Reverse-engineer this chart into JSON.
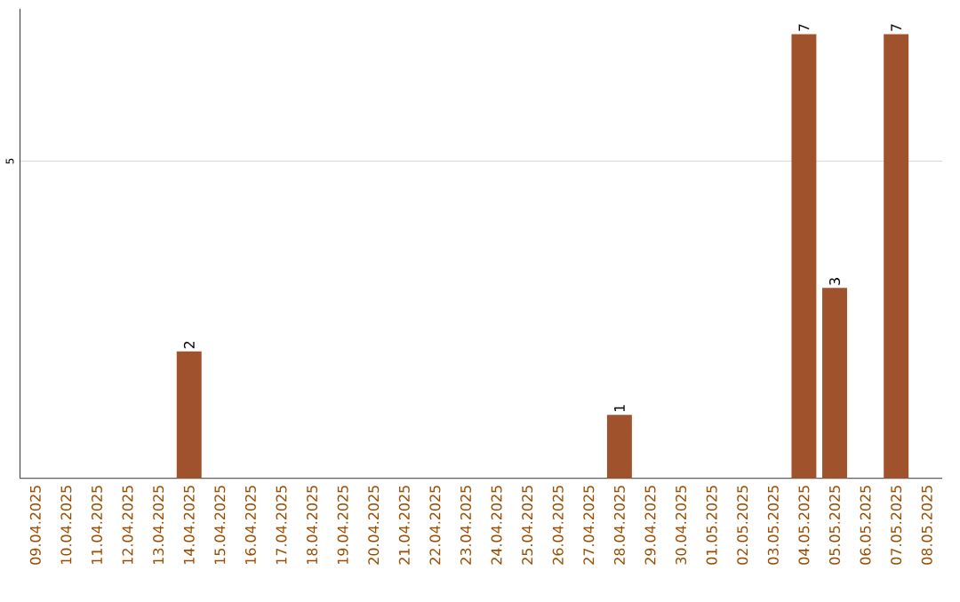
{
  "chart_data": {
    "type": "bar",
    "categories": [
      "09.04.2025",
      "10.04.2025",
      "11.04.2025",
      "12.04.2025",
      "13.04.2025",
      "14.04.2025",
      "15.04.2025",
      "16.04.2025",
      "17.04.2025",
      "18.04.2025",
      "19.04.2025",
      "20.04.2025",
      "21.04.2025",
      "22.04.2025",
      "23.04.2025",
      "24.04.2025",
      "25.04.2025",
      "26.04.2025",
      "27.04.2025",
      "28.04.2025",
      "29.04.2025",
      "30.04.2025",
      "01.05.2025",
      "02.05.2025",
      "03.05.2025",
      "04.05.2025",
      "05.05.2025",
      "06.05.2025",
      "07.05.2025",
      "08.05.2025"
    ],
    "values": [
      0,
      0,
      0,
      0,
      0,
      2,
      0,
      0,
      0,
      0,
      0,
      0,
      0,
      0,
      0,
      0,
      0,
      0,
      0,
      1,
      0,
      0,
      0,
      0,
      0,
      7,
      3,
      0,
      7,
      0
    ],
    "value_labels": [
      null,
      null,
      null,
      null,
      null,
      "2",
      null,
      null,
      null,
      null,
      null,
      null,
      null,
      null,
      null,
      null,
      null,
      null,
      null,
      "1",
      null,
      null,
      null,
      null,
      null,
      "7",
      "3",
      null,
      "7",
      null
    ],
    "color": "#a0522d",
    "ylim": [
      0,
      7.4
    ],
    "yticks": [
      5
    ],
    "grid": "y"
  }
}
